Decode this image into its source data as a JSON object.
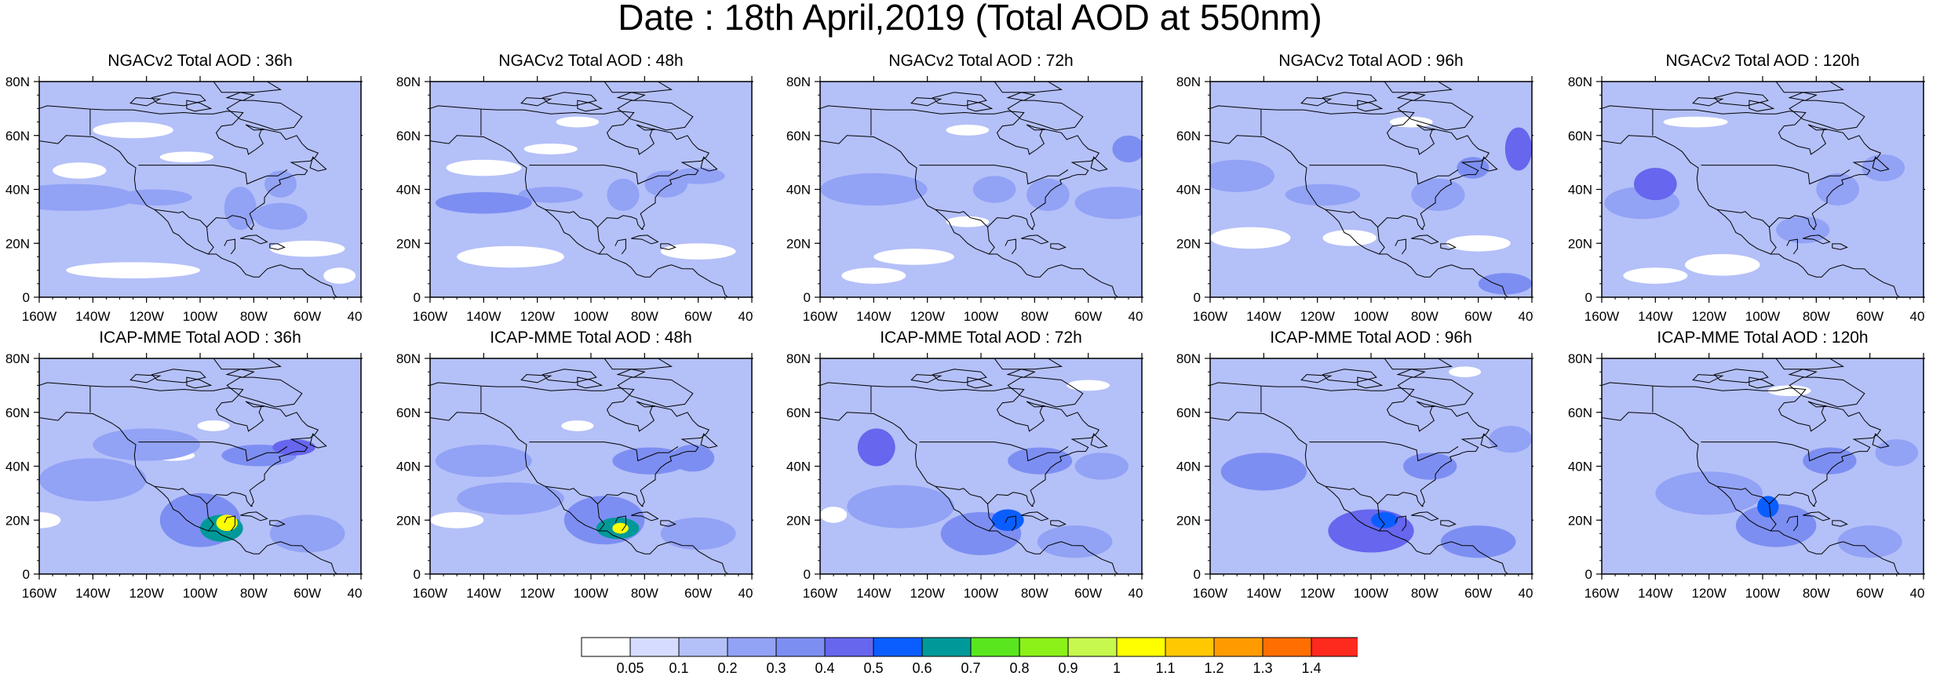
{
  "title": "Date : 18th April,2019 (Total AOD at 550nm)",
  "panels": [
    {
      "title": "NGACv2 Total AOD : 36h",
      "model": "NGACv2",
      "lead": "36h",
      "blobs": [
        [
          -148,
          37,
          24,
          5,
          0.28
        ],
        [
          -117,
          37,
          14,
          3,
          0.28
        ],
        [
          -85,
          33,
          6,
          8,
          0.25
        ],
        [
          -70,
          42,
          6,
          5,
          0.28
        ],
        [
          -70,
          30,
          10,
          5,
          0.22
        ]
      ],
      "clear": [
        [
          -145,
          47,
          10,
          3
        ],
        [
          -125,
          62,
          15,
          3
        ],
        [
          -105,
          52,
          10,
          2
        ],
        [
          -125,
          10,
          25,
          3
        ],
        [
          -60,
          18,
          14,
          3
        ],
        [
          -48,
          8,
          6,
          3
        ]
      ]
    },
    {
      "title": "NGACv2 Total AOD : 48h",
      "model": "NGACv2",
      "lead": "48h",
      "blobs": [
        [
          -140,
          35,
          18,
          4,
          0.3
        ],
        [
          -115,
          38,
          12,
          3,
          0.27
        ],
        [
          -88,
          38,
          6,
          6,
          0.27
        ],
        [
          -72,
          42,
          8,
          5,
          0.28
        ],
        [
          -60,
          45,
          10,
          3,
          0.24
        ]
      ],
      "clear": [
        [
          -140,
          48,
          14,
          3
        ],
        [
          -115,
          55,
          10,
          2
        ],
        [
          -105,
          65,
          8,
          2
        ],
        [
          -130,
          15,
          20,
          4
        ],
        [
          -60,
          17,
          14,
          3
        ]
      ]
    },
    {
      "title": "NGACv2 Total AOD : 72h",
      "model": "NGACv2",
      "lead": "72h",
      "blobs": [
        [
          -140,
          40,
          20,
          6,
          0.26
        ],
        [
          -95,
          40,
          8,
          5,
          0.28
        ],
        [
          -75,
          38,
          8,
          6,
          0.27
        ],
        [
          -45,
          55,
          6,
          5,
          0.34
        ],
        [
          -50,
          35,
          15,
          6,
          0.22
        ]
      ],
      "clear": [
        [
          -125,
          15,
          15,
          3
        ],
        [
          -105,
          28,
          8,
          2
        ],
        [
          -140,
          8,
          12,
          3
        ],
        [
          -105,
          62,
          8,
          2
        ]
      ]
    },
    {
      "title": "NGACv2 Total AOD : 96h",
      "model": "NGACv2",
      "lead": "96h",
      "blobs": [
        [
          -150,
          45,
          14,
          6,
          0.28
        ],
        [
          -118,
          38,
          14,
          4,
          0.27
        ],
        [
          -75,
          38,
          10,
          6,
          0.28
        ],
        [
          -45,
          55,
          5,
          8,
          0.4
        ],
        [
          -62,
          48,
          6,
          4,
          0.3
        ],
        [
          -50,
          5,
          10,
          4,
          0.3
        ]
      ],
      "clear": [
        [
          -145,
          22,
          15,
          4
        ],
        [
          -108,
          22,
          10,
          3
        ],
        [
          -60,
          20,
          12,
          3
        ],
        [
          -85,
          65,
          8,
          2
        ]
      ]
    },
    {
      "title": "NGACv2 Total AOD : 120h",
      "model": "NGACv2",
      "lead": "120h",
      "blobs": [
        [
          -140,
          42,
          8,
          6,
          0.45
        ],
        [
          -145,
          35,
          14,
          6,
          0.28
        ],
        [
          -72,
          40,
          8,
          6,
          0.28
        ],
        [
          -55,
          48,
          8,
          5,
          0.24
        ],
        [
          -85,
          25,
          10,
          5,
          0.22
        ]
      ],
      "clear": [
        [
          -140,
          8,
          12,
          3
        ],
        [
          -115,
          12,
          14,
          4
        ],
        [
          -125,
          65,
          12,
          2
        ]
      ]
    },
    {
      "title": "ICAP-MME Total AOD : 36h",
      "model": "ICAP-MME",
      "lead": "36h",
      "blobs": [
        [
          -100,
          20,
          15,
          10,
          0.32
        ],
        [
          -92,
          17,
          8,
          5,
          0.6
        ],
        [
          -90,
          19,
          4,
          3,
          1.0
        ],
        [
          -78,
          44,
          14,
          4,
          0.38
        ],
        [
          -65,
          47,
          8,
          3,
          0.45
        ],
        [
          -120,
          48,
          20,
          6,
          0.24
        ],
        [
          -60,
          15,
          14,
          7,
          0.28
        ],
        [
          -140,
          35,
          20,
          8,
          0.25
        ]
      ],
      "clear": [
        [
          -110,
          44,
          8,
          2
        ],
        [
          -95,
          55,
          6,
          2
        ],
        [
          -160,
          20,
          8,
          3
        ]
      ]
    },
    {
      "title": "ICAP-MME Total AOD : 48h",
      "model": "ICAP-MME",
      "lead": "48h",
      "blobs": [
        [
          -95,
          20,
          15,
          9,
          0.32
        ],
        [
          -90,
          17,
          8,
          4,
          0.6
        ],
        [
          -89,
          17,
          3,
          2,
          1.0
        ],
        [
          -78,
          42,
          14,
          5,
          0.36
        ],
        [
          -62,
          43,
          8,
          5,
          0.36
        ],
        [
          -140,
          42,
          18,
          6,
          0.27
        ],
        [
          -60,
          15,
          14,
          6,
          0.27
        ],
        [
          -130,
          28,
          20,
          6,
          0.25
        ]
      ],
      "clear": [
        [
          -150,
          20,
          10,
          3
        ],
        [
          -105,
          55,
          6,
          2
        ]
      ]
    },
    {
      "title": "ICAP-MME Total AOD : 72h",
      "model": "ICAP-MME",
      "lead": "72h",
      "blobs": [
        [
          -100,
          15,
          15,
          8,
          0.38
        ],
        [
          -90,
          20,
          6,
          4,
          0.5
        ],
        [
          -139,
          47,
          7,
          7,
          0.4
        ],
        [
          -78,
          42,
          12,
          5,
          0.32
        ],
        [
          -55,
          40,
          10,
          5,
          0.28
        ],
        [
          -65,
          12,
          14,
          6,
          0.28
        ],
        [
          -130,
          25,
          20,
          8,
          0.25
        ]
      ],
      "clear": [
        [
          -155,
          22,
          5,
          3
        ],
        [
          -60,
          70,
          8,
          2
        ]
      ]
    },
    {
      "title": "ICAP-MME Total AOD : 96h",
      "model": "ICAP-MME",
      "lead": "96h",
      "blobs": [
        [
          -100,
          16,
          16,
          8,
          0.4
        ],
        [
          -95,
          20,
          5,
          3,
          0.5
        ],
        [
          -140,
          38,
          16,
          7,
          0.32
        ],
        [
          -78,
          40,
          10,
          5,
          0.3
        ],
        [
          -60,
          12,
          14,
          6,
          0.3
        ],
        [
          -48,
          50,
          8,
          5,
          0.26
        ]
      ],
      "clear": [
        [
          -65,
          75,
          6,
          2
        ]
      ]
    },
    {
      "title": "ICAP-MME Total AOD : 120h",
      "model": "ICAP-MME",
      "lead": "120h",
      "blobs": [
        [
          -95,
          18,
          15,
          8,
          0.36
        ],
        [
          -98,
          25,
          4,
          4,
          0.5
        ],
        [
          -75,
          42,
          10,
          5,
          0.3
        ],
        [
          -120,
          30,
          20,
          8,
          0.27
        ],
        [
          -60,
          12,
          12,
          6,
          0.27
        ],
        [
          -50,
          45,
          8,
          5,
          0.26
        ]
      ],
      "clear": [
        [
          -90,
          68,
          8,
          2
        ]
      ]
    }
  ],
  "map": {
    "lon_range": [
      -160,
      -40
    ],
    "lat_range": [
      0,
      80
    ],
    "x_tick_labels": [
      "160W",
      "140W",
      "120W",
      "100W",
      "80W",
      "60W",
      "40W"
    ],
    "y_tick_labels": [
      "0",
      "20N",
      "40N",
      "60N",
      "80N"
    ],
    "outline_color": "#000000",
    "background_value": 0.18
  },
  "colorbar": {
    "levels": [
      "0.05",
      "0.1",
      "0.2",
      "0.3",
      "0.4",
      "0.5",
      "0.6",
      "0.7",
      "0.8",
      "0.9",
      "1",
      "1.1",
      "1.2",
      "1.3",
      "1.4"
    ],
    "colors": [
      "#ffffff",
      "#d6dcff",
      "#b4c0f8",
      "#92a2f5",
      "#7d8ef2",
      "#6666ee",
      "#0a5eff",
      "#00999a",
      "#5ae61e",
      "#8cf019",
      "#c6f84d",
      "#ffff00",
      "#ffc800",
      "#ff9b00",
      "#ff6e00",
      "#ff2a1e"
    ]
  }
}
